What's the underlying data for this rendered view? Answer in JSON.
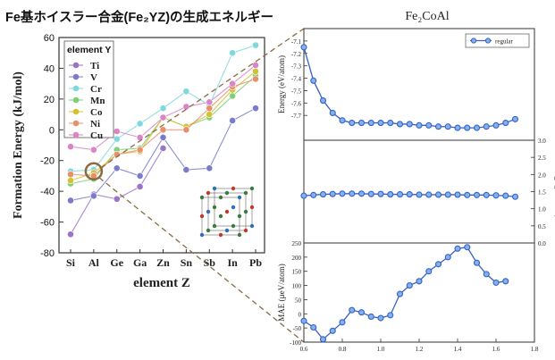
{
  "header": {
    "title": "Fe基ホイスラー合金(Fe₂YZ)の生成エネルギー"
  },
  "chart_data": [
    {
      "type": "line",
      "ylabel": "Formation Energy (kJ/mol)",
      "xlabel": "element Z",
      "ylim": [
        -80,
        60
      ],
      "yticks": [
        -80,
        -60,
        -40,
        -20,
        0,
        20,
        40,
        60
      ],
      "categories": [
        "Si",
        "Al",
        "Ge",
        "Ga",
        "Zn",
        "Sn",
        "Sb",
        "In",
        "Pb"
      ],
      "legend_title": "element Y",
      "legend_position": "top-left",
      "series": [
        {
          "name": "Ti",
          "color": "#9b74c7",
          "values": [
            -68,
            -42,
            -45,
            -37,
            -12,
            null,
            null,
            null,
            null
          ]
        },
        {
          "name": "V",
          "color": "#7a7cc9",
          "values": [
            -46,
            -43,
            -25,
            -30,
            -5,
            -26,
            -25,
            6,
            14
          ]
        },
        {
          "name": "Cr",
          "color": "#7fd8dc",
          "values": [
            -27,
            -26,
            -6,
            4,
            14,
            25,
            16,
            50,
            55
          ]
        },
        {
          "name": "Mn",
          "color": "#7fce78",
          "values": [
            -35,
            -32,
            -13,
            -12,
            8,
            2,
            8,
            22,
            35
          ]
        },
        {
          "name": "Co",
          "color": "#d6c030",
          "values": [
            -33,
            -28,
            -16,
            -14,
            8,
            2,
            10,
            26,
            38
          ]
        },
        {
          "name": "Ni",
          "color": "#e8906a",
          "values": [
            -29,
            -30,
            -16,
            -13,
            0,
            0,
            14,
            28,
            33
          ]
        },
        {
          "name": "Cu",
          "color": "#d985c8",
          "values": [
            -11,
            -13,
            -1,
            -5,
            8,
            15,
            18,
            30,
            42
          ]
        }
      ],
      "highlight": {
        "category": "Al",
        "value": -27
      }
    },
    {
      "type": "line",
      "title": "Fe₂CoAl",
      "shared_x": [
        0.6,
        0.65,
        0.7,
        0.75,
        0.8,
        0.85,
        0.9,
        0.95,
        1.0,
        1.05,
        1.1,
        1.15,
        1.2,
        1.25,
        1.3,
        1.35,
        1.4,
        1.45,
        1.5,
        1.55,
        1.6,
        1.65,
        1.7
      ],
      "xticks": [
        0.6,
        0.8,
        1.0,
        1.2,
        1.4,
        1.6,
        1.8
      ],
      "xlim": [
        0.6,
        1.8
      ],
      "line_color": "#3a5fc8",
      "marker_fill": "#7fb4e8",
      "panels": [
        {
          "ylabel": "Energy (eV/atom)",
          "ylim": [
            -7.9,
            -7.0
          ],
          "yticks": [
            -7.1,
            -7.2,
            -7.3,
            -7.4,
            -7.5,
            -7.6,
            -7.7
          ],
          "legend": "regular",
          "values": [
            -7.15,
            -7.42,
            -7.58,
            -7.68,
            -7.74,
            -7.76,
            -7.76,
            -7.76,
            -7.76,
            -7.76,
            -7.77,
            -7.77,
            -7.78,
            -7.78,
            -7.79,
            -7.79,
            -7.8,
            -7.8,
            -7.8,
            -7.79,
            -7.78,
            -7.76,
            -7.73
          ]
        },
        {
          "ylabel": "Mag. (µB/atom)",
          "ylim": [
            0,
            3.0
          ],
          "yticks": [
            0.0,
            0.5,
            1.0,
            1.5,
            2.0,
            2.5,
            3.0
          ],
          "values": [
            1.38,
            1.4,
            1.42,
            1.43,
            1.44,
            1.44,
            1.44,
            1.43,
            1.43,
            1.42,
            1.42,
            1.42,
            1.41,
            1.41,
            1.41,
            1.41,
            1.41,
            1.4,
            1.4,
            1.4,
            1.39,
            1.38,
            1.35
          ]
        },
        {
          "ylabel": "MAE (µeV/atom)",
          "ylim": [
            -100,
            250
          ],
          "yticks": [
            -100,
            -50,
            0,
            50,
            100,
            150,
            200,
            250
          ],
          "values": [
            -25,
            -48,
            -90,
            -60,
            -30,
            13,
            5,
            -10,
            -15,
            -5,
            70,
            100,
            115,
            150,
            175,
            200,
            230,
            235,
            180,
            140,
            110,
            115,
            null
          ]
        }
      ]
    }
  ]
}
